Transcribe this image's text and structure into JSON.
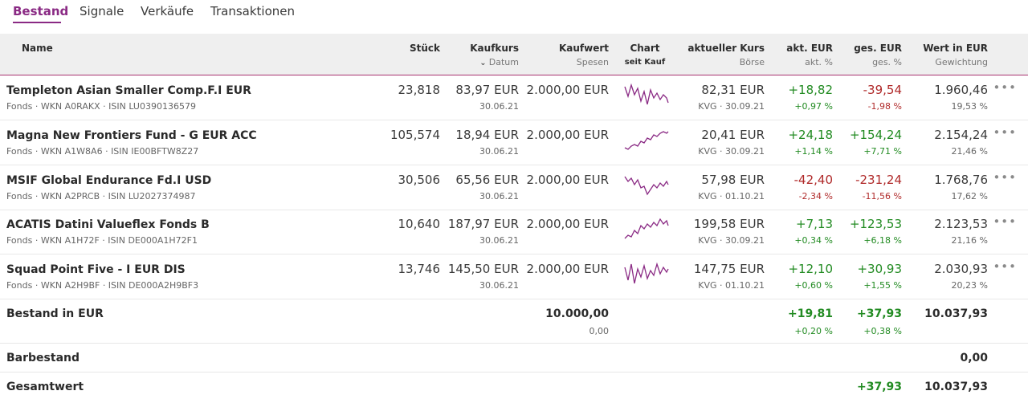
{
  "tabs": [
    {
      "label": "Bestand",
      "active": true
    },
    {
      "label": "Signale",
      "active": false
    },
    {
      "label": "Verkäufe",
      "active": false
    },
    {
      "label": "Transaktionen",
      "active": false
    }
  ],
  "header": {
    "name": "Name",
    "stueck": "Stück",
    "kaufkurs": "Kaufkurs",
    "kaufkurs_sub": "Datum",
    "kaufwert": "Kaufwert",
    "kaufwert_sub": "Spesen",
    "chart": "Chart",
    "chart_sub": "seit Kauf",
    "kurs": "aktueller Kurs",
    "kurs_sub": "Börse",
    "akt": "akt. EUR",
    "akt_sub": "akt. %",
    "ges": "ges. EUR",
    "ges_sub": "ges. %",
    "wert": "Wert in EUR",
    "wert_sub": "Gewichtung"
  },
  "positions": [
    {
      "name": "Templeton Asian Smaller Comp.F.I EUR",
      "meta": "Fonds · WKN A0RAKX · ISIN LU0390136579",
      "stueck": "23,818",
      "kaufkurs": "83,97 EUR",
      "datum": "30.06.21",
      "kaufwert": "2.000,00 EUR",
      "kurs": "82,31 EUR",
      "kurs_sub": "KVG · 30.09.21",
      "akt": "+18,82",
      "akt_pct": "+0,97 %",
      "ges": "-39,54",
      "ges_pct": "-1,98 %",
      "wert": "1.960,46",
      "gewichtung": "19,53 %",
      "akt_color": "#228b22",
      "ges_color": "#b02a2a"
    },
    {
      "name": "Magna New Frontiers Fund - G EUR ACC",
      "meta": "Fonds · WKN A1W8A6 · ISIN IE00BFTW8Z27",
      "stueck": "105,574",
      "kaufkurs": "18,94 EUR",
      "datum": "30.06.21",
      "kaufwert": "2.000,00 EUR",
      "kurs": "20,41 EUR",
      "kurs_sub": "KVG · 30.09.21",
      "akt": "+24,18",
      "akt_pct": "+1,14 %",
      "ges": "+154,24",
      "ges_pct": "+7,71 %",
      "wert": "2.154,24",
      "gewichtung": "21,46 %",
      "akt_color": "#228b22",
      "ges_color": "#228b22"
    },
    {
      "name": "MSIF Global Endurance Fd.I USD",
      "meta": "Fonds · WKN A2PRCB · ISIN LU2027374987",
      "stueck": "30,506",
      "kaufkurs": "65,56 EUR",
      "datum": "30.06.21",
      "kaufwert": "2.000,00 EUR",
      "kurs": "57,98 EUR",
      "kurs_sub": "KVG · 01.10.21",
      "akt": "-42,40",
      "akt_pct": "-2,34 %",
      "ges": "-231,24",
      "ges_pct": "-11,56 %",
      "wert": "1.768,76",
      "gewichtung": "17,62 %",
      "akt_color": "#b02a2a",
      "ges_color": "#b02a2a"
    },
    {
      "name": "ACATIS Datini Valueflex Fonds B",
      "meta": "Fonds · WKN A1H72F · ISIN DE000A1H72F1",
      "stueck": "10,640",
      "kaufkurs": "187,97 EUR",
      "datum": "30.06.21",
      "kaufwert": "2.000,00 EUR",
      "kurs": "199,58 EUR",
      "kurs_sub": "KVG · 30.09.21",
      "akt": "+7,13",
      "akt_pct": "+0,34 %",
      "ges": "+123,53",
      "ges_pct": "+6,18 %",
      "wert": "2.123,53",
      "gewichtung": "21,16 %",
      "akt_color": "#228b22",
      "ges_color": "#228b22"
    },
    {
      "name": "Squad Point Five - I EUR DIS",
      "meta": "Fonds · WKN A2H9BF · ISIN DE000A2H9BF3",
      "stueck": "13,746",
      "kaufkurs": "145,50 EUR",
      "datum": "30.06.21",
      "kaufwert": "2.000,00 EUR",
      "kurs": "147,75 EUR",
      "kurs_sub": "KVG · 01.10.21",
      "akt": "+12,10",
      "akt_pct": "+0,60 %",
      "ges": "+30,93",
      "ges_pct": "+1,55 %",
      "wert": "2.030,93",
      "gewichtung": "20,23 %",
      "akt_color": "#228b22",
      "ges_color": "#228b22"
    }
  ],
  "summary": {
    "bestand_label": "Bestand in EUR",
    "bestand_kaufwert": "10.000,00",
    "bestand_spesen": "0,00",
    "bestand_akt": "+19,81",
    "bestand_akt_pct": "+0,20 %",
    "bestand_ges": "+37,93",
    "bestand_ges_pct": "+0,38 %",
    "bestand_wert": "10.037,93",
    "barbestand_label": "Barbestand",
    "barbestand_wert": "0,00",
    "gesamt_label": "Gesamtwert",
    "gesamt_ges": "+37,93",
    "gesamt_wert": "10.037,93"
  },
  "more_icon": "more-horizontal-icon",
  "colors": {
    "accent": "#8a2a84",
    "positive": "#228b22",
    "negative": "#b02a2a",
    "sparkline": "#8a2a84"
  }
}
